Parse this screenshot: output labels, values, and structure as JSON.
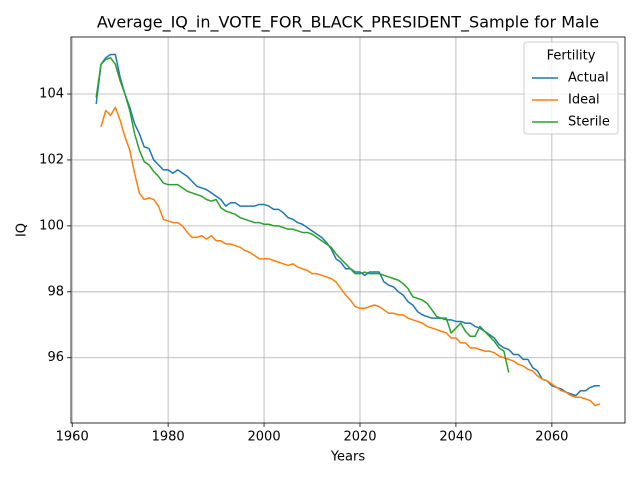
{
  "chart_data": {
    "type": "line",
    "title": "Average_IQ_in_VOTE_FOR_BLACK_PRESIDENT_Sample for Male",
    "x_label": "Years",
    "y_label": "IQ",
    "x": [
      1965,
      1966,
      1967,
      1968,
      1969,
      1970,
      1971,
      1972,
      1973,
      1974,
      1975,
      1976,
      1977,
      1978,
      1979,
      1980,
      1981,
      1982,
      1983,
      1984,
      1985,
      1986,
      1987,
      1988,
      1989,
      1990,
      1991,
      1992,
      1993,
      1994,
      1995,
      1996,
      1997,
      1998,
      1999,
      2000,
      2001,
      2002,
      2003,
      2004,
      2005,
      2006,
      2007,
      2008,
      2009,
      2010,
      2011,
      2012,
      2013,
      2014,
      2015,
      2016,
      2017,
      2018,
      2019,
      2020,
      2021,
      2022,
      2023,
      2024,
      2025,
      2026,
      2027,
      2028,
      2029,
      2030,
      2031,
      2032,
      2033,
      2034,
      2035,
      2036,
      2037,
      2038,
      2039,
      2040,
      2041,
      2042,
      2043,
      2044,
      2045,
      2046,
      2047,
      2048,
      2049,
      2050,
      2051,
      2052,
      2053,
      2054,
      2055,
      2056,
      2057,
      2058,
      2059,
      2060,
      2061,
      2062,
      2063,
      2064,
      2065,
      2066,
      2067,
      2068,
      2069,
      2070
    ],
    "series": [
      {
        "name": "Actual",
        "color": "#1f77b4",
        "values": [
          103.7,
          104.9,
          105.1,
          105.2,
          105.2,
          104.5,
          104.0,
          103.6,
          103.1,
          102.8,
          102.4,
          102.35,
          102.0,
          101.85,
          101.7,
          101.7,
          101.6,
          101.7,
          101.6,
          101.5,
          101.35,
          101.2,
          101.15,
          101.1,
          101.0,
          100.9,
          100.8,
          100.6,
          100.7,
          100.7,
          100.6,
          100.6,
          100.6,
          100.6,
          100.65,
          100.65,
          100.6,
          100.5,
          100.5,
          100.4,
          100.25,
          100.2,
          100.1,
          100.05,
          99.95,
          99.85,
          99.75,
          99.65,
          99.5,
          99.3,
          99.0,
          98.9,
          98.7,
          98.7,
          98.6,
          98.6,
          98.5,
          98.6,
          98.6,
          98.6,
          98.3,
          98.2,
          98.15,
          98.0,
          97.9,
          97.7,
          97.6,
          97.4,
          97.3,
          97.25,
          97.2,
          97.2,
          97.2,
          97.15,
          97.15,
          97.1,
          97.1,
          97.05,
          97.05,
          96.95,
          96.9,
          96.8,
          96.7,
          96.6,
          96.4,
          96.3,
          96.25,
          96.1,
          96.1,
          95.95,
          95.95,
          95.7,
          95.6,
          95.35,
          95.3,
          95.15,
          95.1,
          95.05,
          94.95,
          94.9,
          94.85,
          95.0,
          95.0,
          95.1,
          95.15,
          95.15
        ]
      },
      {
        "name": "Ideal",
        "color": "#ff7f0e",
        "values": [
          null,
          103.0,
          103.5,
          103.35,
          103.6,
          103.2,
          102.7,
          102.3,
          101.6,
          101.0,
          100.8,
          100.85,
          100.8,
          100.6,
          100.2,
          100.15,
          100.1,
          100.1,
          100.0,
          99.8,
          99.65,
          99.65,
          99.7,
          99.6,
          99.7,
          99.55,
          99.55,
          99.45,
          99.45,
          99.4,
          99.35,
          99.25,
          99.2,
          99.1,
          99.0,
          99.0,
          99.0,
          98.95,
          98.9,
          98.85,
          98.8,
          98.85,
          98.75,
          98.7,
          98.65,
          98.55,
          98.55,
          98.5,
          98.45,
          98.4,
          98.3,
          98.1,
          97.9,
          97.75,
          97.55,
          97.5,
          97.5,
          97.55,
          97.6,
          97.55,
          97.45,
          97.35,
          97.35,
          97.3,
          97.3,
          97.2,
          97.15,
          97.1,
          97.05,
          96.95,
          96.9,
          96.85,
          96.8,
          96.75,
          96.6,
          96.6,
          96.45,
          96.45,
          96.3,
          96.3,
          96.25,
          96.2,
          96.2,
          96.15,
          96.05,
          96.0,
          95.95,
          95.9,
          95.8,
          95.75,
          95.65,
          95.6,
          95.45,
          95.35,
          95.3,
          95.2,
          95.1,
          95.0,
          94.95,
          94.85,
          94.8,
          94.8,
          94.75,
          94.7,
          94.55,
          94.6
        ]
      },
      {
        "name": "Sterile",
        "color": "#2ca02c",
        "values": [
          103.9,
          104.9,
          105.05,
          105.1,
          104.9,
          104.4,
          104.0,
          103.5,
          102.8,
          102.3,
          101.95,
          101.85,
          101.65,
          101.5,
          101.3,
          101.25,
          101.25,
          101.25,
          101.15,
          101.05,
          101.0,
          100.95,
          100.9,
          100.8,
          100.75,
          100.8,
          100.55,
          100.45,
          100.4,
          100.35,
          100.25,
          100.2,
          100.15,
          100.1,
          100.1,
          100.05,
          100.05,
          100.0,
          100.0,
          99.95,
          99.9,
          99.9,
          99.85,
          99.8,
          99.8,
          99.75,
          99.65,
          99.55,
          99.45,
          99.35,
          99.15,
          99.0,
          98.85,
          98.7,
          98.55,
          98.55,
          98.6,
          98.55,
          98.55,
          98.55,
          98.5,
          98.45,
          98.4,
          98.35,
          98.25,
          98.1,
          97.85,
          97.8,
          97.75,
          97.65,
          97.45,
          97.25,
          97.2,
          97.2,
          96.75,
          96.9,
          97.05,
          96.8,
          96.65,
          96.65,
          96.95,
          96.8,
          96.65,
          96.5,
          96.3,
          96.2,
          95.55,
          null,
          null,
          null,
          null,
          null,
          null,
          null,
          null,
          null,
          null,
          null,
          null,
          null,
          null,
          null,
          null,
          null,
          null,
          null
        ]
      }
    ],
    "xlim": [
      1959.75,
      2075.25
    ],
    "ylim": [
      94.02,
      105.73
    ],
    "xticks": [
      1960,
      1980,
      2000,
      2020,
      2040,
      2060
    ],
    "yticks": [
      96,
      98,
      100,
      102,
      104
    ],
    "grid": true,
    "legend_title": "Fertility",
    "legend_loc": "upper right"
  }
}
